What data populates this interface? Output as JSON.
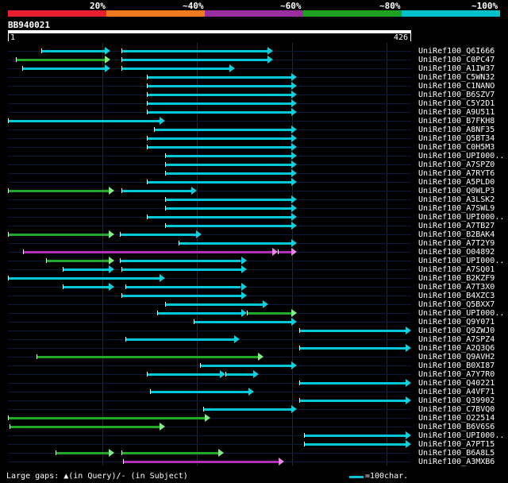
{
  "header": {
    "percent_labels": [
      "20%",
      "~40%",
      "~60%",
      "~80%",
      "~100%"
    ],
    "color_bands": [
      "#e8202e",
      "#ee7a20",
      "#9a2ea0",
      "#1ea020",
      "#00c0cc"
    ]
  },
  "query": {
    "id": "BB940021",
    "start_label": "1",
    "end_label": "426",
    "length": 426
  },
  "colors": {
    "cyan": "#00c8d6",
    "green": "#22a82a",
    "magenta": "#b030b8",
    "cyan_head": "#00d4e0",
    "green_head": "#7ef07e",
    "magenta_head": "#f080f0"
  },
  "hits": [
    {
      "name": "UniRef100_Q6I666",
      "segs": [
        [
          35,
          108,
          "cyan"
        ],
        [
          120,
          280,
          "cyan"
        ]
      ]
    },
    {
      "name": "UniRef100_C0PC47",
      "segs": [
        [
          8,
          108,
          "green"
        ],
        [
          120,
          280,
          "cyan"
        ]
      ]
    },
    {
      "name": "UniRef100_A1IW37",
      "segs": [
        [
          15,
          108,
          "cyan"
        ],
        [
          120,
          240,
          "cyan"
        ]
      ]
    },
    {
      "name": "UniRef100_C5WN32",
      "segs": [
        [
          147,
          305,
          "cyan"
        ]
      ]
    },
    {
      "name": "UniRef100_C1NANO",
      "segs": [
        [
          147,
          305,
          "cyan"
        ]
      ]
    },
    {
      "name": "UniRef100_B6SZV7",
      "segs": [
        [
          147,
          305,
          "cyan"
        ]
      ]
    },
    {
      "name": "UniRef100_C5Y2D1",
      "segs": [
        [
          147,
          305,
          "cyan"
        ]
      ]
    },
    {
      "name": "UniRef100_A9U511",
      "segs": [
        [
          147,
          305,
          "cyan"
        ]
      ]
    },
    {
      "name": "UniRef100_B7FKH8",
      "segs": [
        [
          0,
          166,
          "cyan"
        ]
      ]
    },
    {
      "name": "UniRef100_A8NF35",
      "segs": [
        [
          154,
          305,
          "cyan"
        ]
      ]
    },
    {
      "name": "UniRef100_Q5BT34",
      "segs": [
        [
          147,
          305,
          "cyan"
        ]
      ]
    },
    {
      "name": "UniRef100_C0H5M3",
      "segs": [
        [
          147,
          305,
          "cyan"
        ]
      ]
    },
    {
      "name": "UniRef100_UPI000..",
      "segs": [
        [
          166,
          305,
          "cyan"
        ]
      ]
    },
    {
      "name": "UniRef100_A7SPZ0",
      "segs": [
        [
          166,
          305,
          "cyan"
        ]
      ]
    },
    {
      "name": "UniRef100_A7RYT6",
      "segs": [
        [
          166,
          305,
          "cyan"
        ]
      ]
    },
    {
      "name": "UniRef100_A5PLD0",
      "segs": [
        [
          147,
          305,
          "cyan"
        ]
      ]
    },
    {
      "name": "UniRef100_Q0WLP3",
      "segs": [
        [
          0,
          112,
          "green"
        ],
        [
          120,
          200,
          "cyan"
        ]
      ]
    },
    {
      "name": "UniRef100_A3LSK2",
      "segs": [
        [
          166,
          305,
          "cyan"
        ]
      ]
    },
    {
      "name": "UniRef100_A7SWL9",
      "segs": [
        [
          166,
          305,
          "cyan"
        ]
      ]
    },
    {
      "name": "UniRef100_UPI000..",
      "segs": [
        [
          147,
          305,
          "cyan"
        ]
      ]
    },
    {
      "name": "UniRef100_A7TB27",
      "segs": [
        [
          166,
          305,
          "cyan"
        ]
      ]
    },
    {
      "name": "UniRef100_B2BAK4",
      "segs": [
        [
          0,
          112,
          "green"
        ],
        [
          118,
          205,
          "cyan"
        ]
      ]
    },
    {
      "name": "UniRef100_A7T2Y9",
      "segs": [
        [
          180,
          305,
          "cyan"
        ]
      ]
    },
    {
      "name": "UniRef100_O04892",
      "segs": [
        [
          16,
          285,
          "magenta"
        ],
        [
          285,
          305,
          "magenta"
        ]
      ]
    },
    {
      "name": "UniRef100_UPI000..",
      "segs": [
        [
          40,
          112,
          "green"
        ],
        [
          118,
          252,
          "cyan"
        ]
      ]
    },
    {
      "name": "UniRef100_A7SQ01",
      "segs": [
        [
          58,
          112,
          "cyan"
        ],
        [
          120,
          252,
          "cyan"
        ]
      ]
    },
    {
      "name": "UniRef100_B2KZF9",
      "segs": [
        [
          0,
          166,
          "cyan"
        ]
      ]
    },
    {
      "name": "UniRef100_A7T3X0",
      "segs": [
        [
          58,
          112,
          "cyan"
        ],
        [
          124,
          252,
          "cyan"
        ]
      ]
    },
    {
      "name": "UniRef100_B4XZC3",
      "segs": [
        [
          120,
          252,
          "cyan"
        ]
      ]
    },
    {
      "name": "UniRef100_Q5BXX7",
      "segs": [
        [
          166,
          275,
          "cyan"
        ]
      ]
    },
    {
      "name": "UniRef100_UPI000..",
      "segs": [
        [
          158,
          252,
          "cyan"
        ],
        [
          252,
          305,
          "green"
        ]
      ]
    },
    {
      "name": "UniRef100_Q9Y071",
      "segs": [
        [
          196,
          305,
          "cyan"
        ]
      ]
    },
    {
      "name": "UniRef100_Q9ZWJ0",
      "segs": [
        [
          308,
          426,
          "cyan"
        ]
      ]
    },
    {
      "name": "UniRef100_A7SPZ4",
      "segs": [
        [
          124,
          245,
          "cyan"
        ]
      ]
    },
    {
      "name": "UniRef100_A2Q3Q6",
      "segs": [
        [
          308,
          426,
          "cyan"
        ]
      ]
    },
    {
      "name": "UniRef100_Q9AVH2",
      "segs": [
        [
          30,
          270,
          "green"
        ]
      ]
    },
    {
      "name": "UniRef100_B0XI87",
      "segs": [
        [
          203,
          305,
          "cyan"
        ]
      ]
    },
    {
      "name": "UniRef100_A7Y7R0",
      "segs": [
        [
          147,
          230,
          "cyan"
        ],
        [
          230,
          265,
          "cyan"
        ]
      ]
    },
    {
      "name": "UniRef100_Q40221",
      "segs": [
        [
          308,
          426,
          "cyan"
        ]
      ]
    },
    {
      "name": "UniRef100_A4VF71",
      "segs": [
        [
          150,
          260,
          "cyan"
        ]
      ]
    },
    {
      "name": "UniRef100_Q39902",
      "segs": [
        [
          308,
          426,
          "cyan"
        ]
      ]
    },
    {
      "name": "UniRef100_C7BVQ0",
      "segs": [
        [
          206,
          305,
          "cyan"
        ]
      ]
    },
    {
      "name": "UniRef100_O22514",
      "segs": [
        [
          0,
          214,
          "green"
        ]
      ]
    },
    {
      "name": "UniRef100_B6V6S6",
      "segs": [
        [
          2,
          166,
          "green"
        ]
      ]
    },
    {
      "name": "UniRef100_UPI000..",
      "segs": [
        [
          313,
          426,
          "cyan"
        ]
      ]
    },
    {
      "name": "UniRef100_A7PT15",
      "segs": [
        [
          313,
          426,
          "cyan"
        ]
      ]
    },
    {
      "name": "UniRef100_B6A8L5",
      "segs": [
        [
          50,
          112,
          "green"
        ],
        [
          120,
          228,
          "green"
        ]
      ]
    },
    {
      "name": "UniRef100_A3MXB6",
      "segs": [
        [
          122,
          292,
          "magenta"
        ]
      ]
    }
  ],
  "legend": {
    "gaps_text": "Large gaps: ▲(in Query)/- (in Subject)",
    "scale_text": "=100char."
  }
}
